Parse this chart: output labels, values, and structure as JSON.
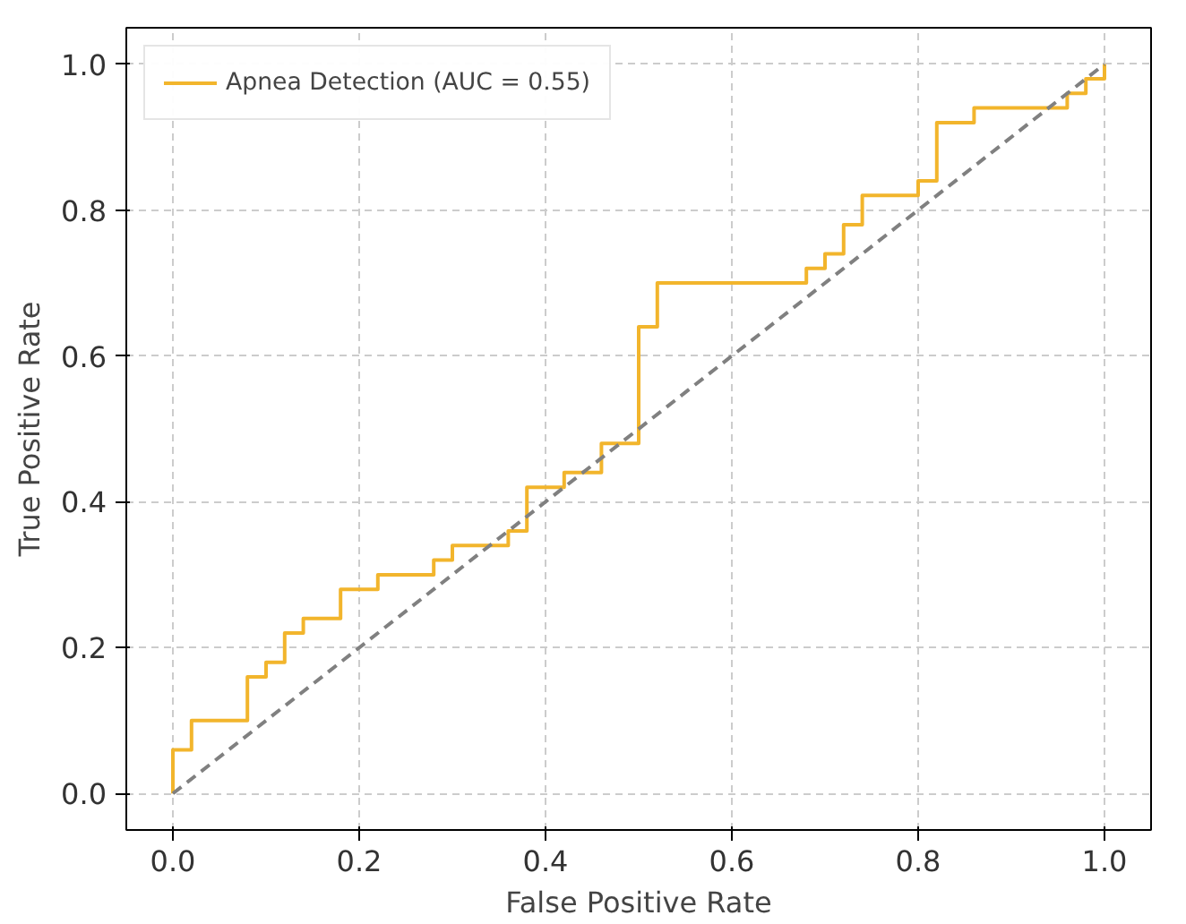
{
  "chart_data": {
    "type": "line",
    "xlabel": "False Positive Rate",
    "ylabel": "True Positive Rate",
    "xlim": [
      -0.05,
      1.05
    ],
    "ylim": [
      -0.05,
      1.05
    ],
    "xticks": [
      {
        "value": 0,
        "label": "0.0"
      },
      {
        "value": 0.2,
        "label": "0.2"
      },
      {
        "value": 0.4,
        "label": "0.4"
      },
      {
        "value": 0.6,
        "label": "0.6"
      },
      {
        "value": 0.8,
        "label": "0.8"
      },
      {
        "value": 1,
        "label": "1.0"
      }
    ],
    "yticks": [
      {
        "value": 0,
        "label": "0.0"
      },
      {
        "value": 0.2,
        "label": "0.2"
      },
      {
        "value": 0.4,
        "label": "0.4"
      },
      {
        "value": 0.6,
        "label": "0.6"
      },
      {
        "value": 0.8,
        "label": "0.8"
      },
      {
        "value": 1,
        "label": "1.0"
      }
    ],
    "grid": true,
    "legend": "top left",
    "marker": "none",
    "series": [
      {
        "name": "Apnea Detection (AUC = 0.55)",
        "color": "#f2b52c",
        "line_style": "solid",
        "x": [
          0,
          0,
          0.02,
          0.02,
          0.08,
          0.08,
          0.1,
          0.1,
          0.12,
          0.12,
          0.14,
          0.14,
          0.18,
          0.18,
          0.22,
          0.22,
          0.28,
          0.28,
          0.3,
          0.3,
          0.36,
          0.36,
          0.38,
          0.38,
          0.42,
          0.42,
          0.46,
          0.46,
          0.5,
          0.5,
          0.52,
          0.52,
          0.68,
          0.68,
          0.7,
          0.7,
          0.72,
          0.72,
          0.74,
          0.74,
          0.8,
          0.8,
          0.82,
          0.82,
          0.86,
          0.86,
          0.96,
          0.96,
          0.98,
          0.98,
          1.0,
          1.0
        ],
        "values": [
          0,
          0.06,
          0.06,
          0.1,
          0.1,
          0.16,
          0.16,
          0.18,
          0.18,
          0.22,
          0.22,
          0.24,
          0.24,
          0.28,
          0.28,
          0.3,
          0.3,
          0.32,
          0.32,
          0.34,
          0.34,
          0.36,
          0.36,
          0.42,
          0.42,
          0.44,
          0.44,
          0.48,
          0.48,
          0.64,
          0.64,
          0.7,
          0.7,
          0.72,
          0.72,
          0.74,
          0.74,
          0.78,
          0.78,
          0.82,
          0.82,
          0.84,
          0.84,
          0.92,
          0.92,
          0.94,
          0.94,
          0.96,
          0.96,
          0.98,
          0.98,
          1.0
        ]
      },
      {
        "color": "#808080",
        "line_style": "dashed",
        "x": [
          0,
          1
        ],
        "values": [
          0,
          1
        ]
      }
    ]
  }
}
